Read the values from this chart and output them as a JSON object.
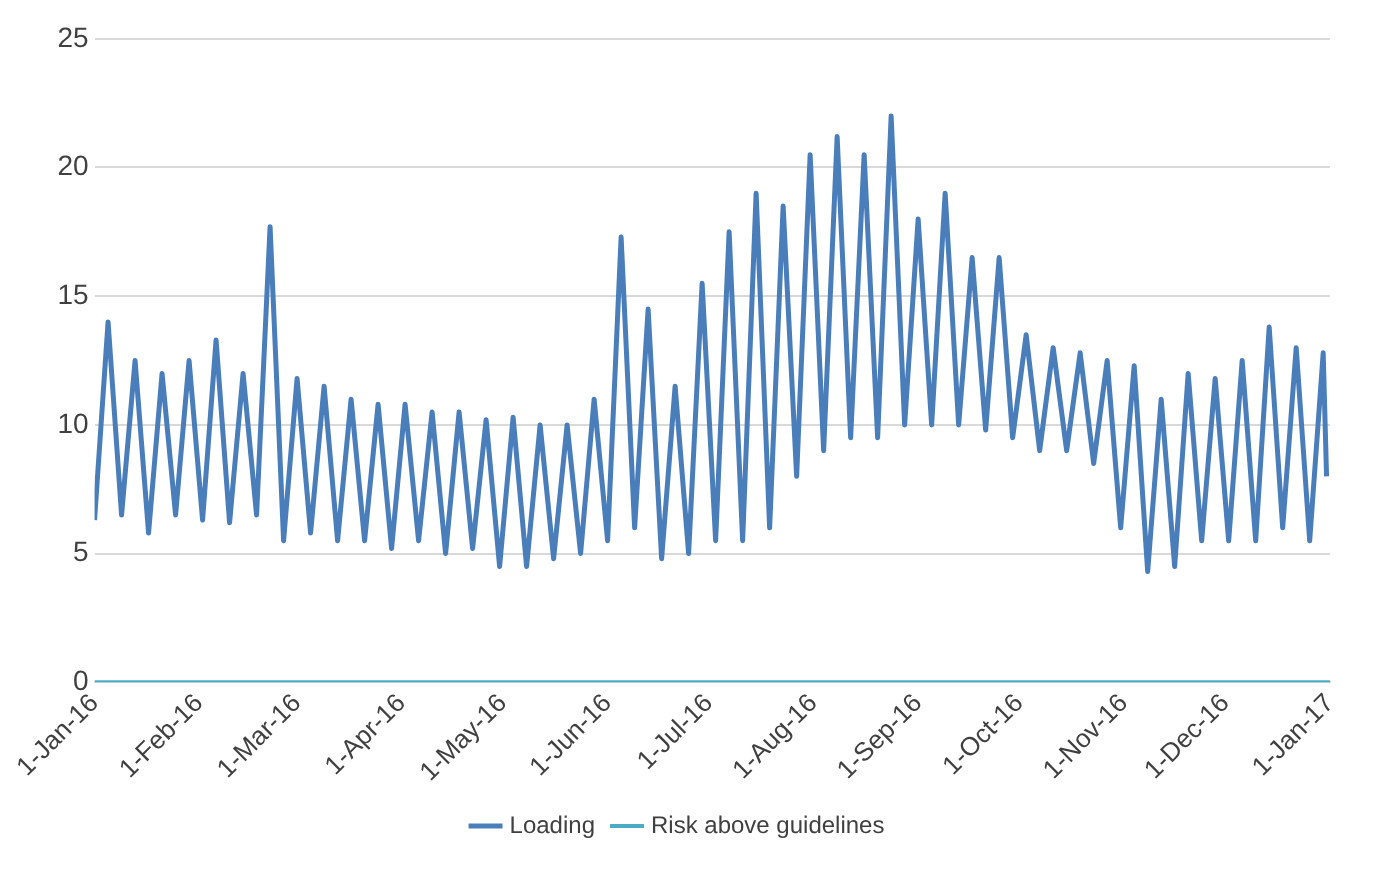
{
  "chart_data": {
    "type": "line",
    "xlim": [
      "2016-01-01",
      "2017-01-01"
    ],
    "xticks": [
      {
        "value": "2016-01-01",
        "label": "1-Jan-16"
      },
      {
        "value": "2016-02-01",
        "label": "1-Feb-16"
      },
      {
        "value": "2016-03-01",
        "label": "1-Mar-16"
      },
      {
        "value": "2016-04-01",
        "label": "1-Apr-16"
      },
      {
        "value": "2016-05-01",
        "label": "1-May-16"
      },
      {
        "value": "2016-06-01",
        "label": "1-Jun-16"
      },
      {
        "value": "2016-07-01",
        "label": "1-Jul-16"
      },
      {
        "value": "2016-08-01",
        "label": "1-Aug-16"
      },
      {
        "value": "2016-09-01",
        "label": "1-Sep-16"
      },
      {
        "value": "2016-10-01",
        "label": "1-Oct-16"
      },
      {
        "value": "2016-11-01",
        "label": "1-Nov-16"
      },
      {
        "value": "2016-12-01",
        "label": "1-Dec-16"
      },
      {
        "value": "2017-01-01",
        "label": "1-Jan-17"
      }
    ],
    "ylim": [
      0,
      25
    ],
    "yticks": [
      0,
      5,
      10,
      15,
      20,
      25
    ],
    "grid": "y",
    "legend": "bottom",
    "marker": "none",
    "line_style": "solid",
    "series": [
      {
        "name": "Loading",
        "color": "#4a7ebb",
        "x": [
          "2016-01-01",
          "2016-01-05",
          "2016-01-09",
          "2016-01-13",
          "2016-01-17",
          "2016-01-21",
          "2016-01-25",
          "2016-01-29",
          "2016-02-02",
          "2016-02-06",
          "2016-02-10",
          "2016-02-14",
          "2016-02-18",
          "2016-02-22",
          "2016-02-26",
          "2016-03-01",
          "2016-03-05",
          "2016-03-09",
          "2016-03-13",
          "2016-03-17",
          "2016-03-21",
          "2016-03-25",
          "2016-03-29",
          "2016-04-02",
          "2016-04-06",
          "2016-04-10",
          "2016-04-14",
          "2016-04-18",
          "2016-04-22",
          "2016-04-26",
          "2016-04-30",
          "2016-05-04",
          "2016-05-08",
          "2016-05-12",
          "2016-05-16",
          "2016-05-20",
          "2016-05-24",
          "2016-05-28",
          "2016-06-01",
          "2016-06-05",
          "2016-06-09",
          "2016-06-13",
          "2016-06-17",
          "2016-06-21",
          "2016-06-25",
          "2016-06-29",
          "2016-07-03",
          "2016-07-07",
          "2016-07-11",
          "2016-07-15",
          "2016-07-19",
          "2016-07-23",
          "2016-07-27",
          "2016-07-31",
          "2016-08-04",
          "2016-08-08",
          "2016-08-12",
          "2016-08-16",
          "2016-08-20",
          "2016-08-24",
          "2016-08-28",
          "2016-09-01",
          "2016-09-05",
          "2016-09-09",
          "2016-09-13",
          "2016-09-17",
          "2016-09-21",
          "2016-09-25",
          "2016-09-29",
          "2016-10-03",
          "2016-10-07",
          "2016-10-11",
          "2016-10-15",
          "2016-10-19",
          "2016-10-23",
          "2016-10-27",
          "2016-10-31",
          "2016-11-04",
          "2016-11-08",
          "2016-11-12",
          "2016-11-16",
          "2016-11-20",
          "2016-11-24",
          "2016-11-28",
          "2016-12-02",
          "2016-12-06",
          "2016-12-10",
          "2016-12-14",
          "2016-12-18",
          "2016-12-22",
          "2016-12-26",
          "2016-12-30",
          "2016-12-31"
        ],
        "values": [
          6.3,
          14,
          6.5,
          12.5,
          5.8,
          12,
          6.5,
          12.5,
          6.3,
          13.3,
          6.2,
          12,
          6.5,
          17.7,
          5.5,
          11.8,
          5.8,
          11.5,
          5.5,
          11,
          5.5,
          10.8,
          5.2,
          10.8,
          5.5,
          10.5,
          5,
          10.5,
          5.2,
          10.2,
          4.5,
          10.3,
          4.5,
          10,
          4.8,
          10,
          5,
          11,
          5.5,
          17.3,
          6,
          14.5,
          4.8,
          11.5,
          5,
          15.5,
          5.5,
          17.5,
          5.5,
          19,
          6,
          18.5,
          8,
          20.5,
          9,
          21.2,
          9.5,
          20.5,
          9.5,
          22,
          10,
          18,
          10,
          19,
          10,
          16.5,
          9.8,
          16.5,
          9.5,
          13.5,
          9,
          13,
          9,
          12.8,
          8.5,
          12.5,
          6,
          12.3,
          4.3,
          11,
          4.5,
          12,
          5.5,
          11.8,
          5.5,
          12.5,
          5.5,
          13.8,
          6,
          13,
          5.5,
          12.8,
          8
        ]
      },
      {
        "name": "Risk above guidelines",
        "color": "#4bacc6",
        "x": [
          "2016-01-01",
          "2017-01-01"
        ],
        "values": [
          0,
          0
        ]
      }
    ]
  }
}
